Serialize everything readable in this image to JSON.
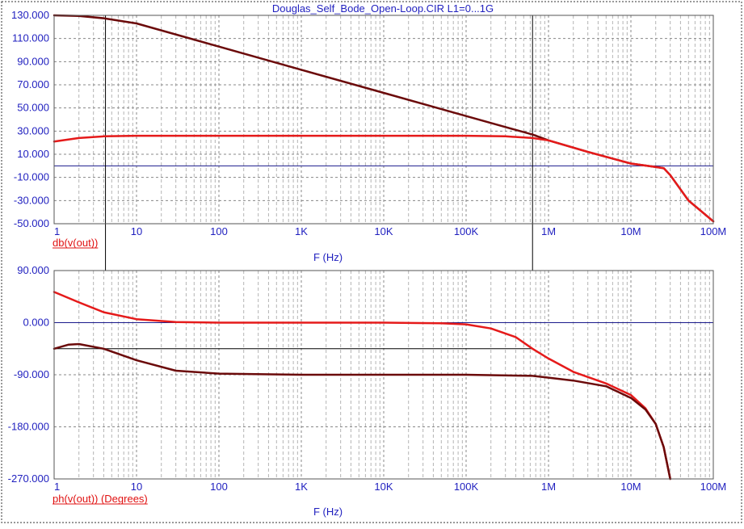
{
  "title": "Douglas_Self_Bode_Open-Loop.CIR L1=0...1G",
  "colors": {
    "axis_text": "#1f1fbf",
    "trace_label": "#e01010",
    "grid_major": "#888888",
    "grid_minor": "#b4b4b4",
    "zero_line": "#1a1a8c",
    "cursor": "#000000",
    "series_light": "#e51a1a",
    "series_dark": "#6b0a0a"
  },
  "chart_data": [
    {
      "type": "line",
      "trace_label": "db(v(out))",
      "xlabel": "F (Hz)",
      "xscale": "log",
      "xlim": [
        1,
        100000000
      ],
      "ylim": [
        -50,
        130
      ],
      "xticks": [
        "1",
        "10",
        "100",
        "1K",
        "10K",
        "100K",
        "1M",
        "10M",
        "100M"
      ],
      "yticks": [
        "130.000",
        "110.000",
        "90.000",
        "70.000",
        "50.000",
        "30.000",
        "10.000",
        "-10.000",
        "-30.000",
        "-50.000"
      ],
      "ytick_values": [
        130,
        110,
        90,
        70,
        50,
        30,
        10,
        -10,
        -30,
        -50
      ],
      "hline": 0,
      "cursors_x": [
        4.2,
        640000
      ],
      "grid": true,
      "series": [
        {
          "color": "#6b0a0a",
          "x": [
            1,
            2,
            4,
            10,
            100,
            1000,
            10000,
            100000,
            300000,
            640000,
            1000000,
            3000000,
            10000000,
            20000000,
            25000000,
            30000000,
            50000000,
            100000000
          ],
          "y": [
            130,
            129.5,
            127.5,
            123,
            103,
            83,
            63,
            43,
            33.5,
            27,
            22,
            12,
            2,
            -1,
            -2,
            -8,
            -30,
            -48
          ]
        },
        {
          "color": "#e51a1a",
          "x": [
            1,
            2,
            4,
            10,
            100,
            1000,
            10000,
            100000,
            300000,
            640000,
            1000000,
            3000000,
            10000000,
            20000000,
            25000000,
            30000000,
            50000000,
            100000000
          ],
          "y": [
            21,
            24,
            25.5,
            26,
            26,
            26,
            26,
            26,
            25.5,
            24,
            22,
            12,
            2,
            -1,
            -2,
            -8,
            -30,
            -48
          ]
        }
      ]
    },
    {
      "type": "line",
      "trace_label": "ph(v(out)) (Degrees)",
      "xlabel": "F (Hz)",
      "xscale": "log",
      "xlim": [
        1,
        100000000
      ],
      "ylim": [
        -270,
        90
      ],
      "xticks": [
        "1",
        "10",
        "100",
        "1K",
        "10K",
        "100K",
        "1M",
        "10M",
        "100M"
      ],
      "yticks": [
        "90.000",
        "0.000",
        "-90.000",
        "-180.000",
        "-270.000"
      ],
      "ytick_values": [
        90,
        0,
        -90,
        -180,
        -270
      ],
      "hline": 0,
      "hline_cursor": -45,
      "cursors_x": [
        4.2,
        640000
      ],
      "grid": true,
      "series": [
        {
          "color": "#e51a1a",
          "x": [
            1,
            2,
            4,
            10,
            30,
            100,
            1000,
            10000,
            50000,
            100000,
            200000,
            400000,
            640000,
            1000000,
            2000000,
            5000000,
            10000000,
            15000000,
            20000000,
            25000000,
            30000000
          ],
          "y": [
            53,
            35,
            18,
            6,
            1,
            0,
            0,
            0,
            -1,
            -3,
            -10,
            -25,
            -45,
            -62,
            -85,
            -105,
            -125,
            -148,
            -175,
            -215,
            -270
          ]
        },
        {
          "color": "#6b0a0a",
          "x": [
            1,
            1.5,
            2,
            4,
            10,
            30,
            100,
            1000,
            10000,
            100000,
            640000,
            1000000,
            2000000,
            5000000,
            10000000,
            15000000,
            20000000,
            25000000,
            30000000
          ],
          "y": [
            -45,
            -38,
            -37,
            -45,
            -65,
            -83,
            -88,
            -90,
            -90,
            -90,
            -92,
            -95,
            -100,
            -110,
            -130,
            -150,
            -175,
            -215,
            -270
          ]
        }
      ]
    }
  ]
}
